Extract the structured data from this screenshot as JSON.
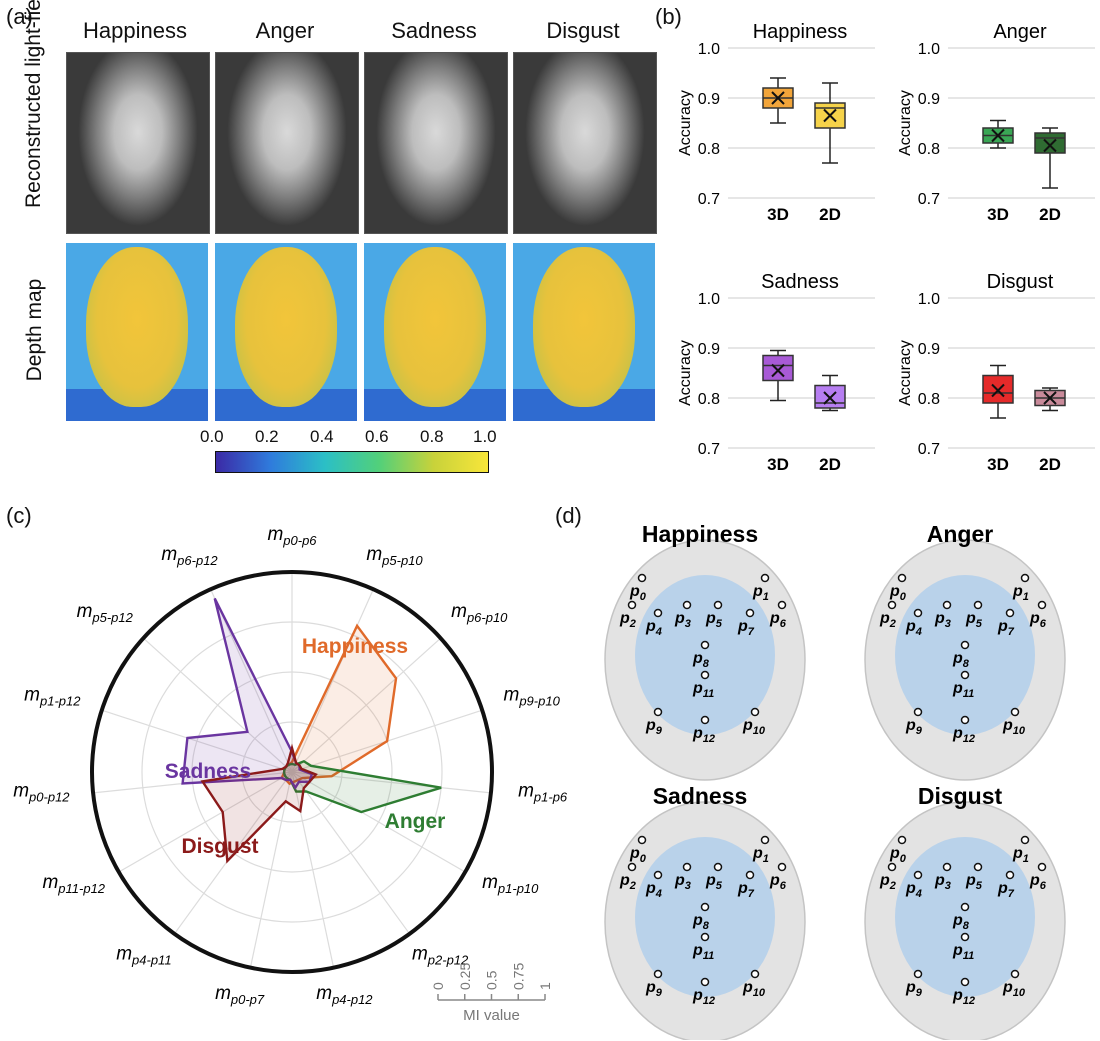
{
  "panel_a": {
    "label": "(a)",
    "columns": [
      "Happiness",
      "Anger",
      "Sadness",
      "Disgust"
    ],
    "row_labels": [
      "Reconstructed light-field",
      "Depth map"
    ],
    "colorbar": {
      "ticks": [
        "0.0",
        "0.2",
        "0.4",
        "0.6",
        "0.8",
        "1.0"
      ]
    }
  },
  "panel_b": {
    "label": "(b)",
    "ylabel": "Accuracy",
    "yticks": [
      "1.0",
      "0.9",
      "0.8",
      "0.7"
    ]
  },
  "panel_c": {
    "label": "(c)",
    "scale_ticks": [
      "0",
      "0.25",
      "0.5",
      "0.75",
      "1"
    ],
    "scale_label": "MI value",
    "series_labels": [
      "Happiness",
      "Anger",
      "Sadness",
      "Disgust"
    ]
  },
  "panel_d": {
    "label": "(d)",
    "titles": [
      "Happiness",
      "Anger",
      "Sadness",
      "Disgust"
    ],
    "points": [
      "0",
      "1",
      "2",
      "3",
      "4",
      "5",
      "6",
      "7",
      "8",
      "11",
      "9",
      "12",
      "10"
    ]
  },
  "chart_data": [
    {
      "type": "box",
      "title": "Happiness",
      "ylabel": "Accuracy",
      "categories": [
        "3D",
        "2D"
      ],
      "ylim": [
        0.7,
        1.0
      ],
      "colors": [
        "#f2a53a",
        "#f6d34a"
      ],
      "boxes": [
        {
          "min": 0.85,
          "q1": 0.88,
          "median": 0.9,
          "mean": 0.9,
          "q3": 0.92,
          "max": 0.94
        },
        {
          "min": 0.77,
          "q1": 0.84,
          "median": 0.88,
          "mean": 0.865,
          "q3": 0.89,
          "max": 0.93
        }
      ]
    },
    {
      "type": "box",
      "title": "Anger",
      "ylabel": "Accuracy",
      "categories": [
        "3D",
        "2D"
      ],
      "ylim": [
        0.7,
        1.0
      ],
      "colors": [
        "#3aa655",
        "#2f6b32"
      ],
      "boxes": [
        {
          "min": 0.8,
          "q1": 0.81,
          "median": 0.825,
          "mean": 0.825,
          "q3": 0.84,
          "max": 0.855
        },
        {
          "min": 0.72,
          "q1": 0.79,
          "median": 0.82,
          "mean": 0.805,
          "q3": 0.83,
          "max": 0.84
        }
      ]
    },
    {
      "type": "box",
      "title": "Sadness",
      "ylabel": "Accuracy",
      "categories": [
        "3D",
        "2D"
      ],
      "ylim": [
        0.7,
        1.0
      ],
      "colors": [
        "#a85ad6",
        "#b77ef2"
      ],
      "boxes": [
        {
          "min": 0.795,
          "q1": 0.835,
          "median": 0.865,
          "mean": 0.855,
          "q3": 0.885,
          "max": 0.895
        },
        {
          "min": 0.775,
          "q1": 0.78,
          "median": 0.79,
          "mean": 0.8,
          "q3": 0.825,
          "max": 0.845
        }
      ]
    },
    {
      "type": "box",
      "title": "Disgust",
      "ylabel": "Accuracy",
      "categories": [
        "3D",
        "2D"
      ],
      "ylim": [
        0.7,
        1.0
      ],
      "colors": [
        "#e52a2a",
        "#c98a9a"
      ],
      "boxes": [
        {
          "min": 0.76,
          "q1": 0.79,
          "median": 0.81,
          "mean": 0.815,
          "q3": 0.845,
          "max": 0.865
        },
        {
          "min": 0.775,
          "q1": 0.785,
          "median": 0.8,
          "mean": 0.8,
          "q3": 0.815,
          "max": 0.82
        }
      ]
    },
    {
      "type": "radar",
      "axes": [
        "p0-p6",
        "p5-p10",
        "p6-p10",
        "p9-p10",
        "p1-p6",
        "p1-p10",
        "p2-p12",
        "p4-p12",
        "p0-p7",
        "p4-p11",
        "p11-p12",
        "p0-p12",
        "p1-p12",
        "p5-p12",
        "p6-p12"
      ],
      "rlim": [
        0,
        1
      ],
      "series": [
        {
          "name": "Happiness",
          "color": "#e06a2a",
          "values": [
            0.05,
            0.8,
            0.7,
            0.5,
            0.2,
            0.06,
            0.05,
            0.05,
            0.06,
            0.05,
            0.06,
            0.04,
            0.04,
            0.04,
            0.04
          ]
        },
        {
          "name": "Anger",
          "color": "#2e7d32",
          "values": [
            0.04,
            0.04,
            0.08,
            0.1,
            0.75,
            0.4,
            0.12,
            0.1,
            0.04,
            0.04,
            0.04,
            0.04,
            0.04,
            0.04,
            0.04
          ]
        },
        {
          "name": "Sadness",
          "color": "#6a35a0",
          "values": [
            0.1,
            0.05,
            0.05,
            0.04,
            0.1,
            0.1,
            0.06,
            0.08,
            0.04,
            0.05,
            0.06,
            0.55,
            0.55,
            0.3,
            0.95
          ]
        },
        {
          "name": "Disgust",
          "color": "#8b1a1a",
          "values": [
            0.12,
            0.05,
            0.05,
            0.05,
            0.12,
            0.1,
            0.1,
            0.2,
            0.15,
            0.55,
            0.4,
            0.45,
            0.05,
            0.04,
            0.05
          ]
        }
      ]
    }
  ]
}
